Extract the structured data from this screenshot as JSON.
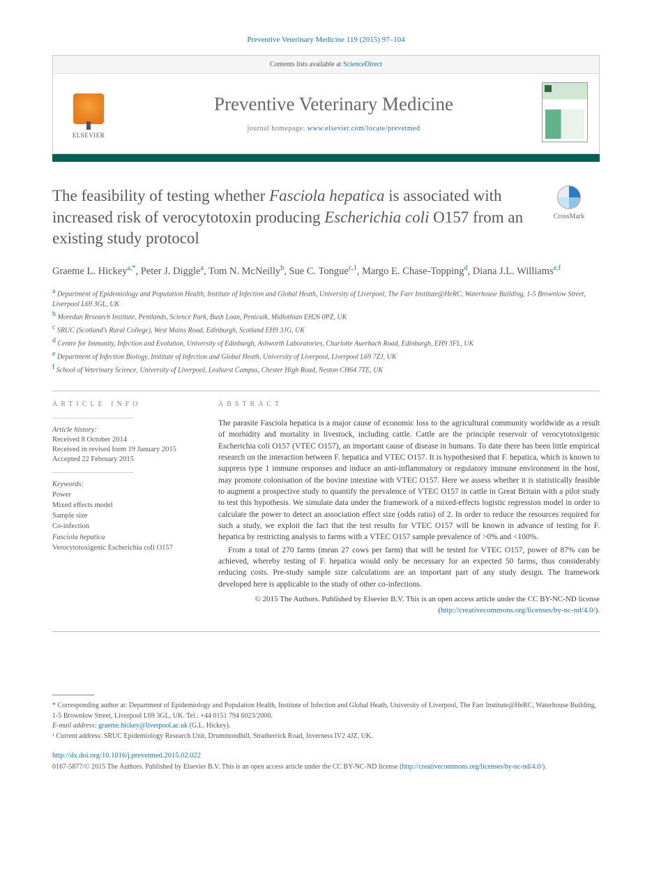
{
  "header_citation": "Preventive Veterinary Medicine 119 (2015) 97–104",
  "banner": {
    "contents_text": "Contents lists available at ",
    "contents_link": "ScienceDirect",
    "journal_name": "Preventive Veterinary Medicine",
    "homepage_label": "journal homepage: ",
    "homepage_url": "www.elsevier.com/locate/prevetmed",
    "publisher_logo_text": "ELSEVIER"
  },
  "accent_color": "#0a5f55",
  "crossmark_label": "CrossMark",
  "title_parts": [
    "The feasibility of testing whether ",
    "Fasciola hepatica",
    " is associated with increased risk of verocytotoxin producing ",
    "Escherichia coli",
    " O157 from an existing study protocol"
  ],
  "authors": [
    {
      "name": "Graeme L. Hickey",
      "sup": "a,*"
    },
    {
      "name": "Peter J. Diggle",
      "sup": "a"
    },
    {
      "name": "Tom N. McNeilly",
      "sup": "b"
    },
    {
      "name": "Sue C. Tongue",
      "sup": "c,1"
    },
    {
      "name": "Margo E. Chase-Topping",
      "sup": "d"
    },
    {
      "name": "Diana J.L. Williams",
      "sup": "e,f"
    }
  ],
  "affiliations": [
    {
      "sup": "a",
      "text": "Department of Epidemiology and Population Health, Institute of Infection and Global Heath, University of Liverpool, The Farr Institute@HeRC, Waterhouse Building, 1-5 Brownlow Street, Liverpool L69 3GL, UK"
    },
    {
      "sup": "b",
      "text": "Moredun Research Institute, Pentlands, Science Park, Bush Loan, Penicuik, Midlothian EH26 0PZ, UK"
    },
    {
      "sup": "c",
      "text": "SRUC (Scotland's Rural College), West Mains Road, Edinburgh, Scotland EH9 3JG, UK"
    },
    {
      "sup": "d",
      "text": "Centre for Immunity, Infection and Evolution, University of Edinburgh, Ashworth Laboratories, Charlotte Auerbach Road, Edinburgh, EH9 3FL, UK"
    },
    {
      "sup": "e",
      "text": "Department of Infection Biology, Institute of Infection and Global Heath, University of Liverpool, Liverpool L69 7ZJ, UK"
    },
    {
      "sup": "f",
      "text": "School of Veterinary Science, University of Liverpool, Leahurst Campus, Chester High Road, Neston CH64 7TE, UK"
    }
  ],
  "article_info": {
    "heading": "ARTICLE INFO",
    "history_label": "Article history:",
    "history": [
      "Received 8 October 2014",
      "Received in revised form 19 January 2015",
      "Accepted 22 February 2015"
    ],
    "keywords_label": "Keywords:",
    "keywords": [
      "Power",
      "Mixed effects model",
      "Sample size",
      "Co-infection",
      "Fasciola hepatica",
      "Verocytotoxigenic Escherichia coli O157"
    ]
  },
  "abstract": {
    "heading": "ABSTRACT",
    "p1": "The parasite Fasciola hepatica is a major cause of economic loss to the agricultural community worldwide as a result of morbidity and mortality in livestock, including cattle. Cattle are the principle reservoir of verocytotoxigenic Escherichia coli O157 (VTEC O157), an important cause of disease in humans. To date there has been little empirical research on the interaction between F. hepatica and VTEC O157. It is hypothesised that F. hepatica, which is known to suppress type 1 immune responses and induce an anti-inflammatory or regulatory immune environment in the host, may promote colonisation of the bovine intestine with VTEC O157. Here we assess whether it is statistically feasible to augment a prospective study to quantify the prevalence of VTEC O157 in cattle in Great Britain with a pilot study to test this hypothesis. We simulate data under the framework of a mixed-effects logistic regression model in order to calculate the power to detect an association effect size (odds ratio) of 2. In order to reduce the resources required for such a study, we exploit the fact that the test results for VTEC O157 will be known in advance of testing for F. hepatica by restricting analysis to farms with a VTEC O157 sample prevalence of >0% and <100%.",
    "p2": "From a total of 270 farms (mean 27 cows per farm) that will be tested for VTEC O157, power of 87% can be achieved, whereby testing of F. hepatica would only be necessary for an expected 50 farms, thus considerably reducing costs. Pre-study sample size calculations are an important part of any study design. The framework developed here is applicable to the study of other co-infections.",
    "copyright": "© 2015 The Authors. Published by Elsevier B.V. This is an open access article under the CC BY-NC-ND license (",
    "license_url": "http://creativecommons.org/licenses/by-nc-nd/4.0/",
    "copyright_close": ")."
  },
  "footnotes": {
    "corresponding": "* Corresponding author at: Department of Epidemiology and Population Health, Institute of Infection and Global Heath, University of Liverpool, The Farr Institute@HeRC, Waterhouse Building, 1-5 Brownlow Street, Liverpool L69 3GL, UK. Tel.: +44 0151 794 6023/2000.",
    "email_label": "E-mail address: ",
    "email": "graeme.hickey@liverpool.ac.uk",
    "email_suffix": " (G.L. Hickey).",
    "current_addr": "¹ Current address: SRUC Epidemiology Research Unit, Drummondhill, Stratherrick Road, Inverness IV2 4JZ, UK."
  },
  "doi": "http://dx.doi.org/10.1016/j.prevetmed.2015.02.022",
  "bottom_copy": {
    "issn_line": "0167-5877/© 2015 The Authors. Published by Elsevier B.V. This is an open access article under the CC BY-NC-ND license (",
    "license_url": "http://creativecommons.org/licenses/by-nc-nd/4.0/",
    "close": ")."
  },
  "colors": {
    "link": "#1a72b8",
    "accent": "#0a5f55",
    "text": "#3a3a3a",
    "heading_gray": "#585858"
  }
}
